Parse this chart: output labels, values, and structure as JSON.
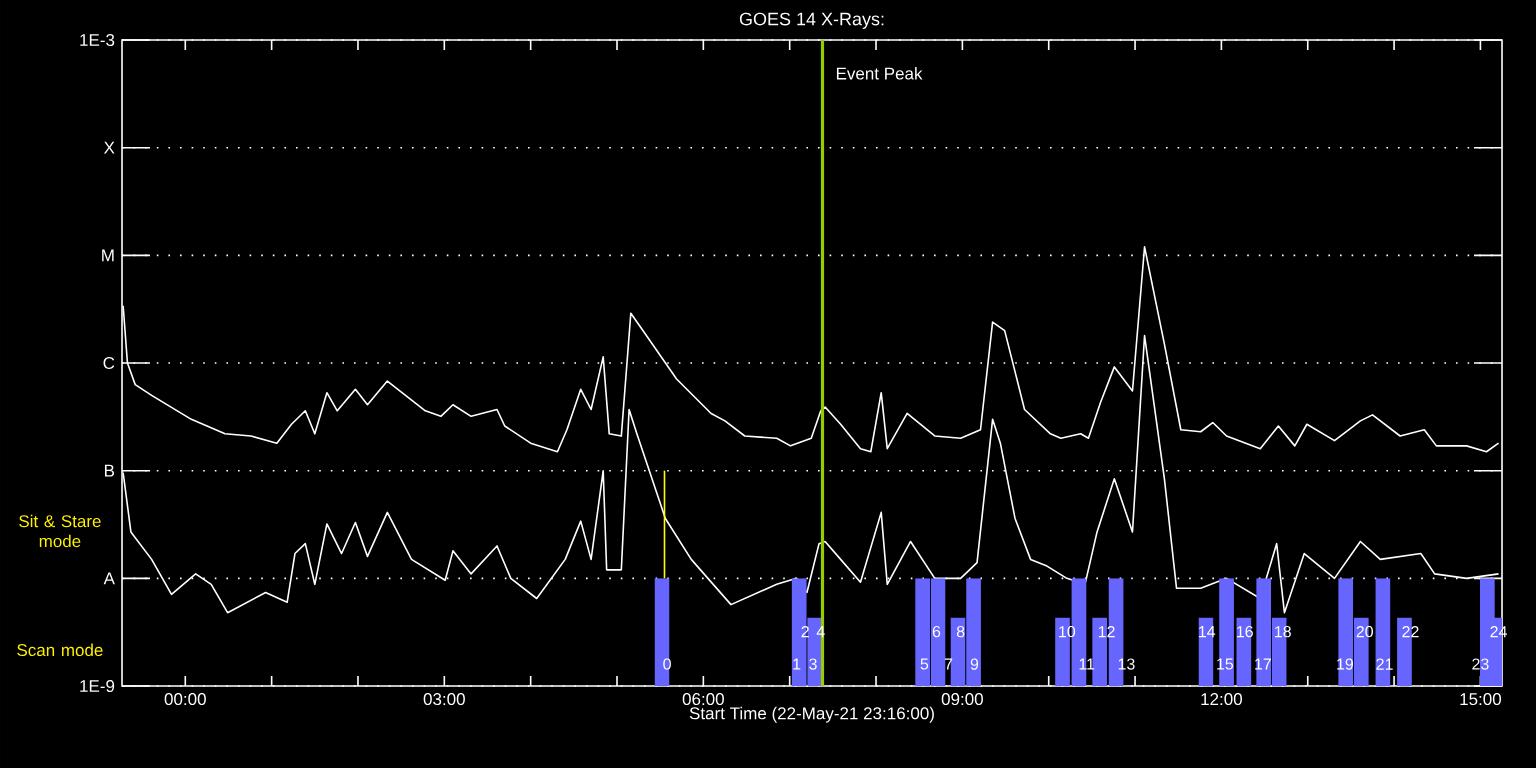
{
  "chart_data": {
    "type": "line",
    "title": "GOES 14 X-Rays:",
    "xlabel": "Start Time (22-May-21 23:16:00)",
    "xlim": [
      -0.733,
      15.25
    ],
    "ylim": [
      1e-09,
      0.001
    ],
    "log": true,
    "grid": "y",
    "xticks": [
      {
        "value": 0,
        "label": "00:00"
      },
      {
        "value": 1,
        "label": null
      },
      {
        "value": 2,
        "label": null
      },
      {
        "value": 3,
        "label": "03:00"
      },
      {
        "value": 4,
        "label": null
      },
      {
        "value": 5,
        "label": null
      },
      {
        "value": 6,
        "label": "06:00"
      },
      {
        "value": 7,
        "label": null
      },
      {
        "value": 8,
        "label": null
      },
      {
        "value": 9,
        "label": "09:00"
      },
      {
        "value": 10,
        "label": null
      },
      {
        "value": 11,
        "label": null
      },
      {
        "value": 12,
        "label": "12:00"
      },
      {
        "value": 13,
        "label": null
      },
      {
        "value": 14,
        "label": null
      },
      {
        "value": 15,
        "label": "15:00"
      }
    ],
    "yticks": [
      {
        "value": 1e-09,
        "label": "1E-9"
      },
      {
        "value": 1e-08,
        "label": "A"
      },
      {
        "value": 1e-07,
        "label": "B"
      },
      {
        "value": 1e-06,
        "label": "C"
      },
      {
        "value": 1e-05,
        "label": "M"
      },
      {
        "value": 0.0001,
        "label": "X"
      },
      {
        "value": 0.001,
        "label": "1E-3"
      }
    ],
    "series": [
      {
        "color": "#ffffff",
        "x": [
          -0.72,
          -0.67,
          -0.58,
          -0.39,
          0.07,
          0.46,
          0.76,
          1.06,
          1.23,
          1.39,
          1.5,
          1.64,
          1.76,
          1.97,
          2.11,
          2.34,
          2.78,
          2.96,
          3.1,
          3.31,
          3.61,
          3.7,
          4.0,
          4.31,
          4.42,
          4.58,
          4.7,
          4.84,
          4.91,
          5.05,
          5.16,
          5.32,
          5.69,
          6.09,
          6.25,
          6.48,
          6.85,
          7.01,
          7.25,
          7.36,
          7.41,
          7.59,
          7.82,
          7.94,
          8.06,
          8.13,
          8.36,
          8.68,
          8.98,
          9.21,
          9.35,
          9.49,
          9.72,
          10.02,
          10.14,
          10.37,
          10.46,
          10.6,
          10.76,
          10.97,
          11.11,
          11.34,
          11.53,
          11.76,
          11.9,
          12.06,
          12.45,
          12.66,
          12.85,
          12.99,
          13.31,
          13.61,
          13.75,
          14.07,
          14.35,
          14.49,
          14.84,
          15.07,
          15.21
        ],
        "values": [
          3.4e-06,
          1e-06,
          6.3e-07,
          5e-07,
          3e-07,
          2.2e-07,
          2.1e-07,
          1.8e-07,
          2.7e-07,
          3.6e-07,
          2.2e-07,
          5.3e-07,
          3.6e-07,
          5.7e-07,
          4.1e-07,
          6.8e-07,
          3.6e-07,
          3.2e-07,
          4.1e-07,
          3.2e-07,
          3.7e-07,
          2.6e-07,
          1.8e-07,
          1.5e-07,
          2.4e-07,
          5.7e-07,
          3.7e-07,
          1.14e-06,
          2.2e-07,
          2.1e-07,
          2.9e-06,
          1.9e-06,
          7.1e-07,
          3.4e-07,
          2.9e-07,
          2.1e-07,
          2e-07,
          1.7e-07,
          2e-07,
          3.6e-07,
          3.9e-07,
          2.7e-07,
          1.6e-07,
          1.5e-07,
          5.3e-07,
          1.6e-07,
          3.4e-07,
          2.1e-07,
          2e-07,
          2.4e-07,
          2.4e-06,
          2e-06,
          3.7e-07,
          2.2e-07,
          2e-07,
          2.2e-07,
          2e-07,
          4.3e-07,
          9.2e-07,
          5.5e-07,
          1.2e-05,
          1.5e-06,
          2.4e-07,
          2.3e-07,
          2.8e-07,
          2.1e-07,
          1.6e-07,
          2.6e-07,
          1.7e-07,
          2.7e-07,
          1.9e-07,
          2.9e-07,
          3.3e-07,
          2.1e-07,
          2.4e-07,
          1.7e-07,
          1.7e-07,
          1.5e-07,
          1.8e-07
        ]
      },
      {
        "color": "#ffffff",
        "x": [
          -0.72,
          -0.63,
          -0.39,
          -0.16,
          0.12,
          0.3,
          0.49,
          0.93,
          1.18,
          1.27,
          1.39,
          1.5,
          1.64,
          1.81,
          1.97,
          2.11,
          2.34,
          2.62,
          3.01,
          3.1,
          3.31,
          3.61,
          3.77,
          4.07,
          4.4,
          4.58,
          4.7,
          4.84,
          4.88,
          5.05,
          5.14,
          5.23,
          5.56,
          5.86,
          6.32,
          6.85,
          7.08,
          7.2,
          7.34,
          7.41,
          7.59,
          7.82,
          8.06,
          8.13,
          8.4,
          8.68,
          8.98,
          9.17,
          9.35,
          9.44,
          9.61,
          9.79,
          9.98,
          10.21,
          10.42,
          10.56,
          10.76,
          10.97,
          11.11,
          11.34,
          11.48,
          11.76,
          12.06,
          12.45,
          12.64,
          12.73,
          12.96,
          13.31,
          13.61,
          13.84,
          14.31,
          14.47,
          14.84,
          15.21
        ],
        "values": [
          9.6e-08,
          2.7e-08,
          1.5e-08,
          7.1e-09,
          1.1e-08,
          8.8e-09,
          4.8e-09,
          7.4e-09,
          6e-09,
          1.7e-08,
          2.1e-08,
          8.8e-09,
          3.2e-08,
          1.7e-08,
          3.3e-08,
          1.6e-08,
          4.1e-08,
          1.5e-08,
          9.6e-09,
          1.8e-08,
          1.1e-08,
          2e-08,
          1e-08,
          6.5e-09,
          1.5e-08,
          3.4e-08,
          1.5e-08,
          1e-07,
          1.2e-08,
          1.2e-08,
          3.7e-07,
          2.2e-07,
          3.6e-08,
          1.5e-08,
          5.7e-09,
          8.8e-09,
          1e-08,
          7.4e-09,
          2.1e-08,
          2.2e-08,
          1.5e-08,
          9.2e-09,
          4.1e-08,
          8.8e-09,
          2.2e-08,
          1e-08,
          1e-08,
          1.4e-08,
          3e-07,
          1.8e-07,
          3.6e-08,
          1.5e-08,
          1.3e-08,
          1e-08,
          8.8e-09,
          2.7e-08,
          8.4e-08,
          2.7e-08,
          1.8e-06,
          8.4e-08,
          8.1e-09,
          8.1e-09,
          1e-08,
          6.5e-09,
          2.1e-08,
          4.8e-09,
          1.7e-08,
          1e-08,
          2.2e-08,
          1.5e-08,
          1.7e-08,
          1.1e-08,
          1e-08,
          1.1e-08
        ]
      },
      {
        "type": "line",
        "color": "#ffff00",
        "x": [
          5.55,
          5.55
        ],
        "values": [
          1e-08,
          1e-07
        ]
      },
      {
        "type": "bar",
        "color": "#6666ff",
        "x": [
          5.52,
          7.11,
          7.29,
          8.54,
          8.72,
          8.95,
          9.13,
          10.16,
          10.35,
          10.59,
          10.78,
          11.82,
          12.06,
          12.26,
          12.49,
          12.67,
          13.44,
          13.62,
          13.87,
          14.12,
          15.08,
          15.21
        ],
        "base": [
          1e-09,
          1e-09,
          1e-09,
          1e-09,
          1e-09,
          1e-09,
          1e-09,
          1e-09,
          1e-09,
          1e-09,
          1e-09,
          1e-09,
          1e-09,
          1e-09,
          1e-09,
          1e-09,
          1e-09,
          1e-09,
          1e-09,
          1e-09,
          1e-09,
          1e-09
        ],
        "values": [
          9e-09,
          9e-09,
          3.3e-09,
          9e-09,
          9e-09,
          3.3e-09,
          9e-09,
          3.3e-09,
          9e-09,
          3.3e-09,
          9e-09,
          3.3e-09,
          9e-09,
          3.3e-09,
          9e-09,
          3.3e-09,
          9e-09,
          3.3e-09,
          9e-09,
          3.3e-09,
          9e-09,
          3.3e-09
        ]
      }
    ],
    "ref_lines": [
      {
        "axis": "x",
        "value": 7.38,
        "label": "Event Peak",
        "color": "#99cc00"
      }
    ],
    "annotations": [
      "Sit & Stare mode",
      "Scan mode",
      {
        "text": "0",
        "x": 5.58,
        "y": 1.6e-09
      },
      {
        "text": "1",
        "x": 7.08,
        "y": 1.6e-09
      },
      {
        "text": "2",
        "x": 7.18,
        "y": 3.2e-09
      },
      {
        "text": "3",
        "x": 7.27,
        "y": 1.6e-09
      },
      {
        "text": "4",
        "x": 7.36,
        "y": 3.2e-09
      },
      {
        "text": "5",
        "x": 8.56,
        "y": 1.6e-09
      },
      {
        "text": "6",
        "x": 8.7,
        "y": 3.2e-09
      },
      {
        "text": "7",
        "x": 8.84,
        "y": 1.6e-09
      },
      {
        "text": "8",
        "x": 8.98,
        "y": 3.2e-09
      },
      {
        "text": "9",
        "x": 9.14,
        "y": 1.6e-09
      },
      {
        "text": "10",
        "x": 10.21,
        "y": 3.2e-09
      },
      {
        "text": "11",
        "x": 10.44,
        "y": 1.6e-09
      },
      {
        "text": "12",
        "x": 10.67,
        "y": 3.2e-09
      },
      {
        "text": "13",
        "x": 10.9,
        "y": 1.6e-09
      },
      {
        "text": "14",
        "x": 11.83,
        "y": 3.2e-09
      },
      {
        "text": "15",
        "x": 12.04,
        "y": 1.6e-09
      },
      {
        "text": "16",
        "x": 12.27,
        "y": 3.2e-09
      },
      {
        "text": "17",
        "x": 12.48,
        "y": 1.6e-09
      },
      {
        "text": "18",
        "x": 12.71,
        "y": 3.2e-09
      },
      {
        "text": "19",
        "x": 13.43,
        "y": 1.6e-09
      },
      {
        "text": "20",
        "x": 13.66,
        "y": 3.2e-09
      },
      {
        "text": "21",
        "x": 13.89,
        "y": 1.6e-09
      },
      {
        "text": "22",
        "x": 14.19,
        "y": 3.2e-09
      },
      {
        "text": "23",
        "x": 15.0,
        "y": 1.6e-09
      },
      {
        "text": "24",
        "x": 15.21,
        "y": 3.2e-09
      }
    ]
  }
}
